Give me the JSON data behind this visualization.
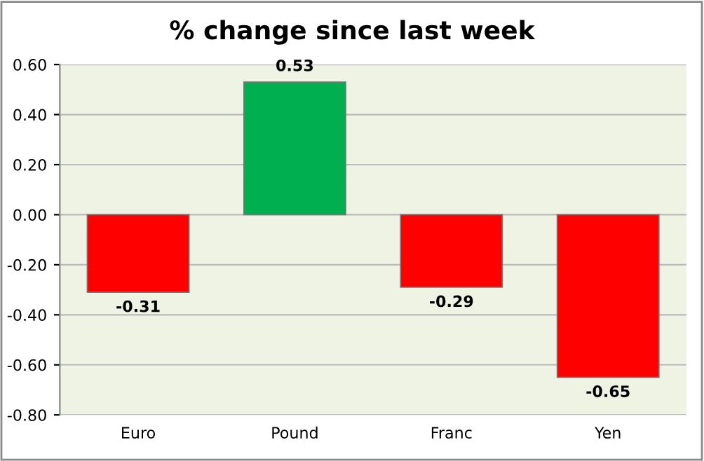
{
  "chart_data": {
    "type": "bar",
    "title": "% change since last week",
    "categories": [
      "Euro",
      "Pound",
      "Franc",
      "Yen"
    ],
    "values": [
      -0.31,
      0.53,
      -0.29,
      -0.65
    ],
    "colors": [
      "#ff0000",
      "#00b050",
      "#ff0000",
      "#ff0000"
    ],
    "ylim": [
      -0.8,
      0.6
    ],
    "yticks": [
      {
        "value": -0.8,
        "label": "-0.80"
      },
      {
        "value": -0.6,
        "label": "-0.60"
      },
      {
        "value": -0.4,
        "label": "-0.40"
      },
      {
        "value": -0.2,
        "label": "-0.20"
      },
      {
        "value": 0,
        "label": "0.00"
      },
      {
        "value": 0.2,
        "label": "0.20"
      },
      {
        "value": 0.4,
        "label": "0.40"
      },
      {
        "value": 0.6,
        "label": "0.60"
      }
    ],
    "grid": "y",
    "data_labels": true
  }
}
